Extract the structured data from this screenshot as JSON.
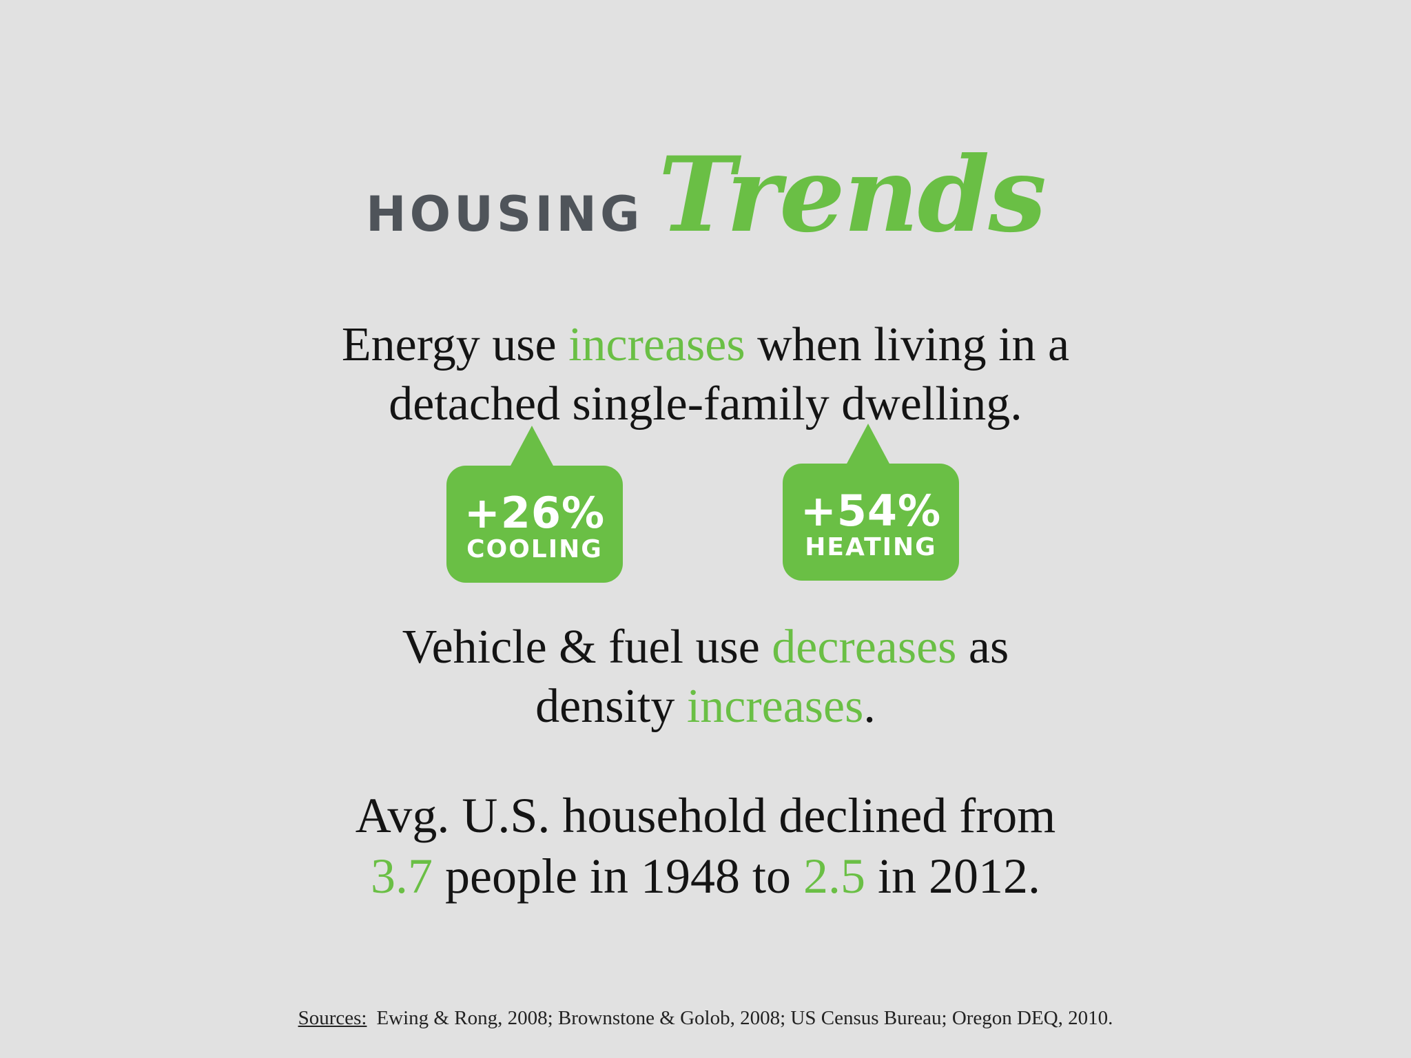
{
  "title": {
    "word1": "HOUSING",
    "word2": "Trends"
  },
  "energy_statement": {
    "part1": "Energy use ",
    "highlight": "increases",
    "part2": " when living in a",
    "line2": "detached single-family dwelling."
  },
  "bubbles": [
    {
      "value": "+26%",
      "label": "COOLING"
    },
    {
      "value": "+54%",
      "label": "HEATING"
    }
  ],
  "vehicle_statement": {
    "part1": "Vehicle & fuel use ",
    "highlight1": "decreases",
    "part2": " as",
    "part3": "density ",
    "highlight2": "increases",
    "part4": "."
  },
  "household_statement": {
    "line1": "Avg. U.S. household declined from",
    "value1": "3.7",
    "part2": " people in 1948 to ",
    "value2": "2.5",
    "part3": " in 2012."
  },
  "sources": {
    "label": "Sources:",
    "text": "Ewing & Rong, 2008;  Brownstone & Golob, 2008;  US Census Bureau;  Oregon DEQ, 2010."
  },
  "colors": {
    "accent_green": "#6abf45",
    "title_gray": "#4f545a",
    "background": "#e1e1e1"
  }
}
